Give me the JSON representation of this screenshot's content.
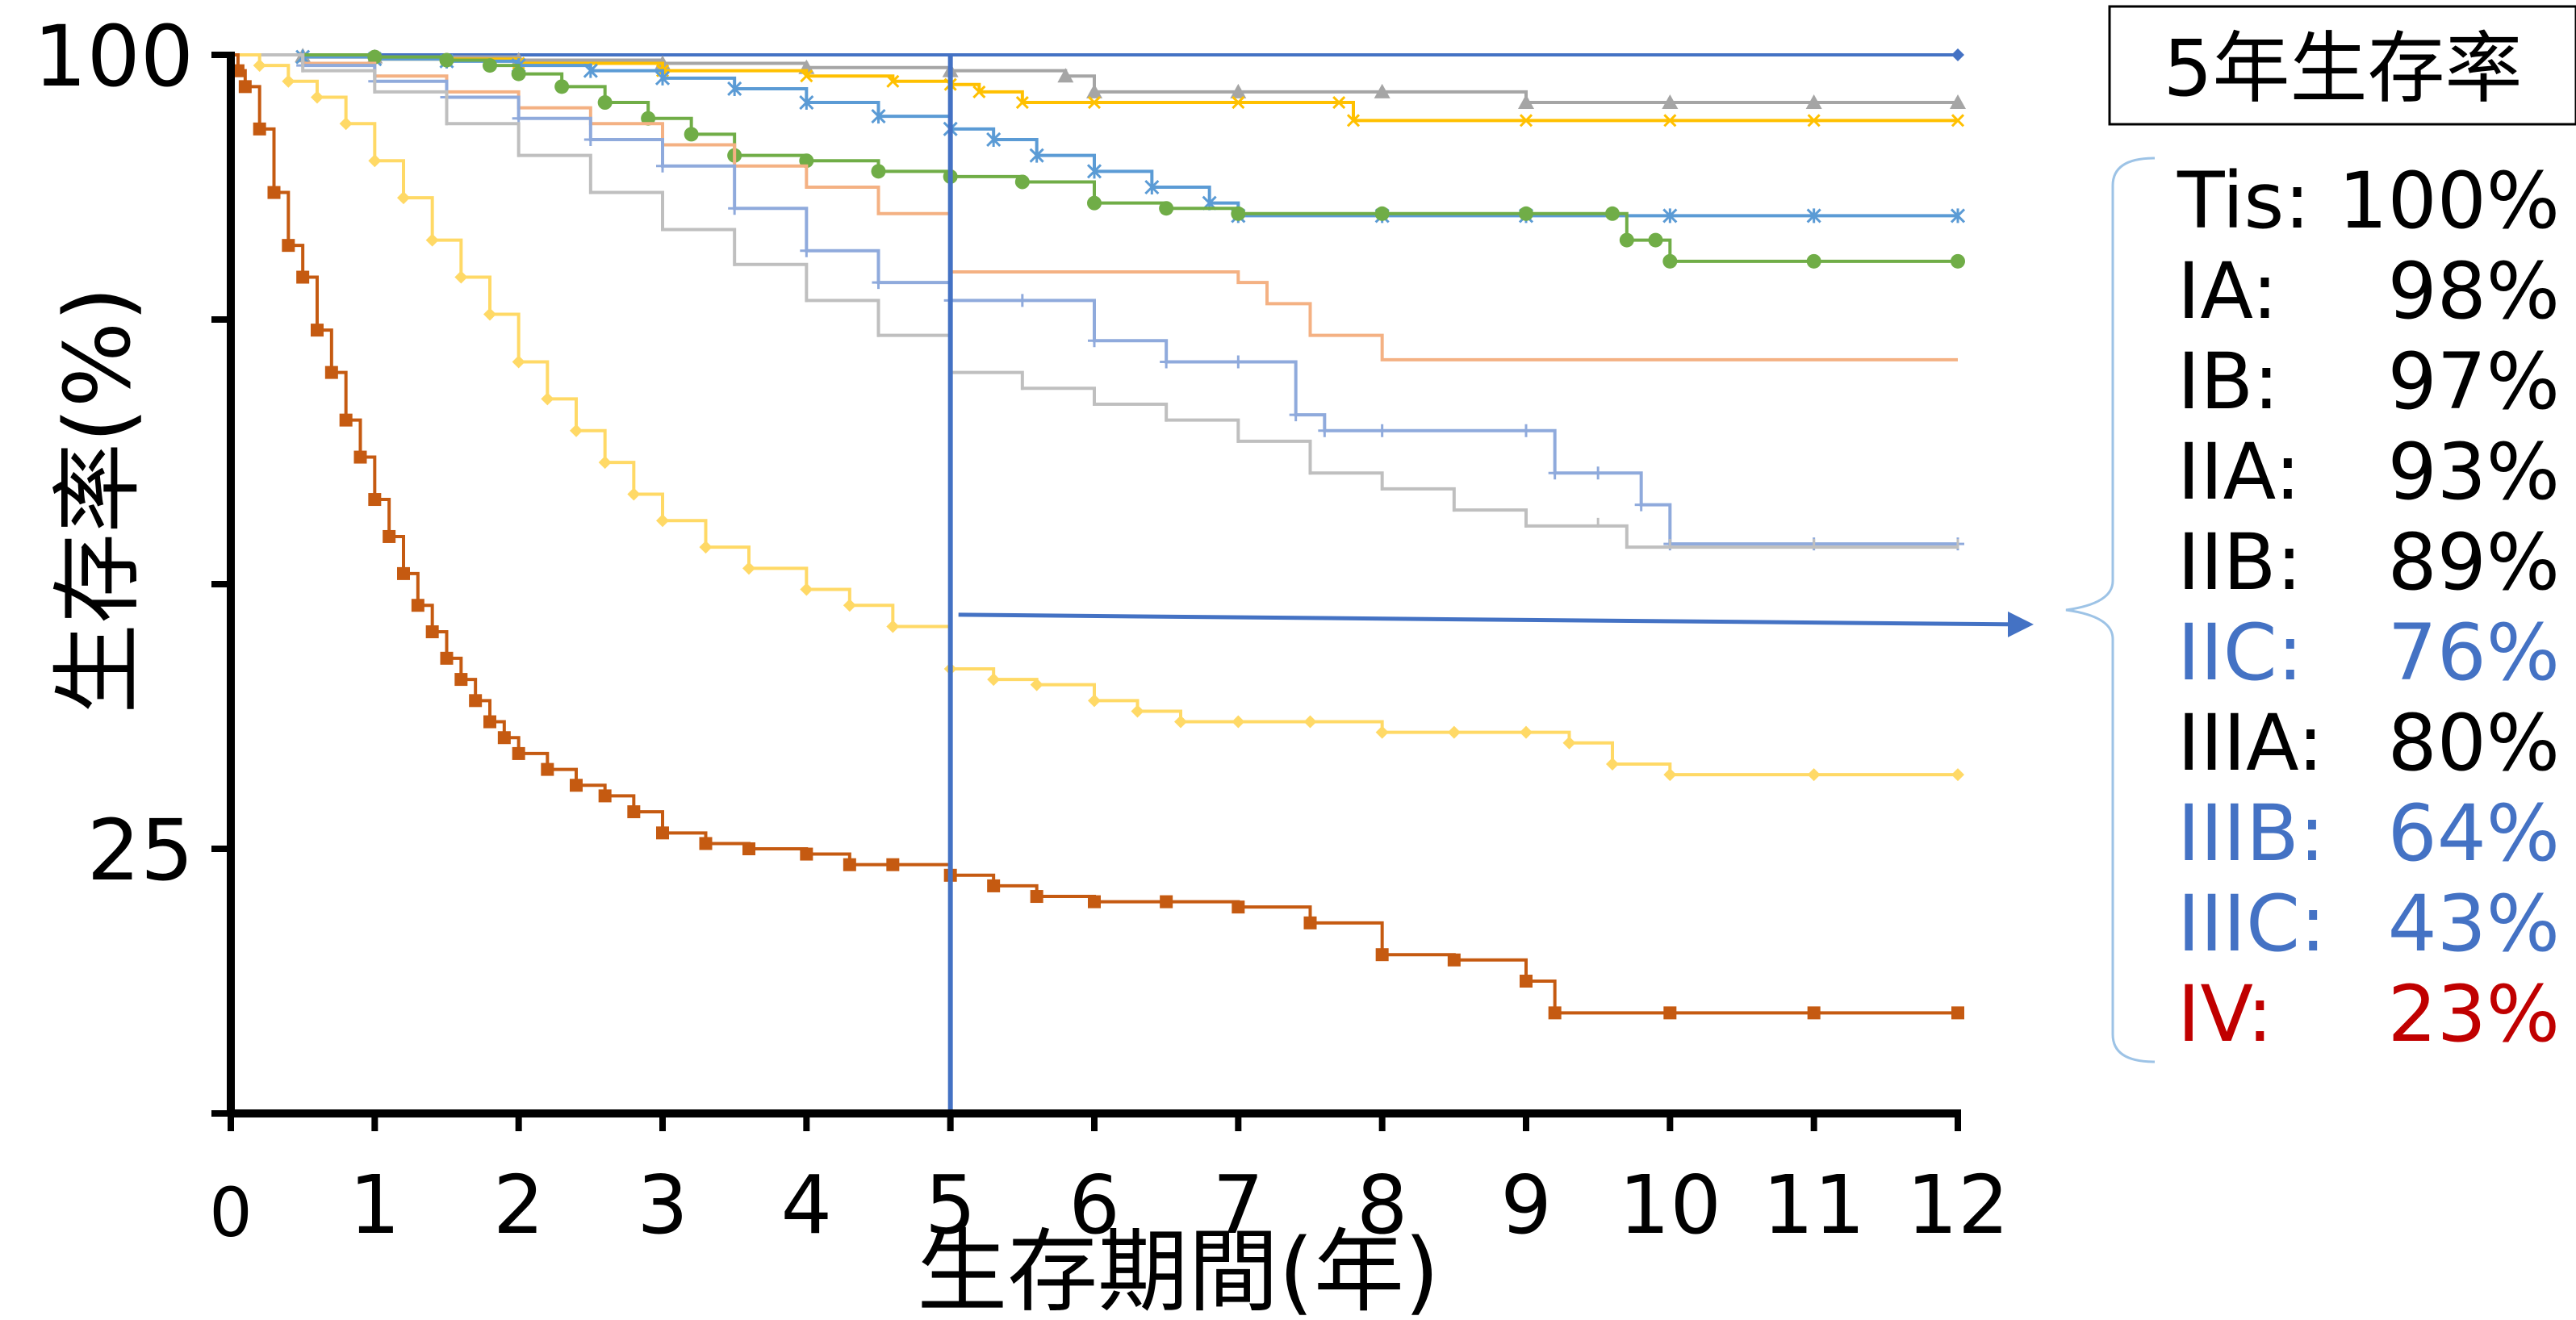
{
  "chart_data": {
    "type": "line",
    "title": "",
    "xlabel": "生存期間(年)",
    "ylabel": "生存率(%)",
    "xlim": [
      0,
      12
    ],
    "ylim": [
      0,
      100
    ],
    "x_ticks": [
      "0",
      "1",
      "2",
      "3",
      "4",
      "5",
      "6",
      "7",
      "8",
      "9",
      "10",
      "11",
      "12"
    ],
    "y_ticks": [
      {
        "value": 100,
        "label": "100"
      },
      {
        "value": 75,
        "label": ""
      },
      {
        "value": 50,
        "label": ""
      },
      {
        "value": 25,
        "label": "25"
      },
      {
        "value": 0,
        "label": ""
      }
    ],
    "grid": false,
    "legend_box_title": "5年生存率",
    "reference_line_x": 5,
    "reference_arrow_y": 46.5,
    "legend_entries": [
      {
        "label": "Tis:",
        "value": "100%",
        "color": "#000000"
      },
      {
        "label": "IA:",
        "value": "98%",
        "color": "#000000"
      },
      {
        "label": "IB:",
        "value": "97%",
        "color": "#000000"
      },
      {
        "label": "IIA:",
        "value": "93%",
        "color": "#000000"
      },
      {
        "label": "IIB:",
        "value": "89%",
        "color": "#000000"
      },
      {
        "label": "IIC:",
        "value": "76%",
        "color": "#4472c4"
      },
      {
        "label": "IIIA:",
        "value": "80%",
        "color": "#000000"
      },
      {
        "label": "IIIB:",
        "value": "64%",
        "color": "#4472c4"
      },
      {
        "label": "IIIC:",
        "value": "43%",
        "color": "#4472c4"
      },
      {
        "label": "IV:",
        "value": "23%",
        "color": "#c00000"
      }
    ],
    "series": [
      {
        "color": "#4472c4",
        "marker": "diamond",
        "x": [
          0,
          12
        ],
        "y": [
          100,
          100
        ]
      },
      {
        "color": "#a5a5a5",
        "marker": "triangle",
        "x": [
          0,
          0.5,
          1,
          2,
          3,
          4,
          5,
          5.8,
          6,
          7,
          8,
          9,
          10,
          11,
          12
        ],
        "y": [
          100,
          99.9,
          99.8,
          99.5,
          99.2,
          98.8,
          98.5,
          98,
          96.5,
          96.5,
          96.5,
          95.5,
          95.5,
          95.5,
          95.5
        ]
      },
      {
        "color": "#ffc000",
        "marker": "x",
        "x": [
          0,
          0.5,
          1,
          2,
          3,
          4,
          4.6,
          5,
          5.2,
          5.5,
          6,
          7,
          7.7,
          7.8,
          9,
          10,
          11,
          12
        ],
        "y": [
          100,
          99.8,
          99.6,
          99.2,
          98.5,
          98,
          97.5,
          97.2,
          96.5,
          95.5,
          95.5,
          95.5,
          95.5,
          93.8,
          93.8,
          93.8,
          93.8,
          93.8
        ]
      },
      {
        "color": "#5b9bd5",
        "marker": "asterisk",
        "x": [
          0,
          0.5,
          1,
          1.5,
          2,
          2.5,
          3,
          3.5,
          4,
          4.5,
          5,
          5.3,
          5.6,
          6,
          6.4,
          6.8,
          7,
          8,
          9,
          10,
          11,
          12
        ],
        "y": [
          100,
          99.8,
          99.6,
          99.4,
          99,
          98.5,
          97.8,
          96.8,
          95.5,
          94.2,
          93,
          92,
          90.5,
          89,
          87.5,
          86,
          84.8,
          84.8,
          84.8,
          84.8,
          84.8,
          84.8
        ]
      },
      {
        "color": "#70ad47",
        "marker": "circle",
        "x": [
          0,
          1,
          1.5,
          1.8,
          2,
          2.3,
          2.6,
          2.9,
          3.2,
          3.5,
          4,
          4.5,
          5,
          5.5,
          6,
          6.5,
          7,
          8,
          9,
          9.6,
          9.7,
          9.9,
          10,
          11,
          12
        ],
        "y": [
          100,
          99.8,
          99.5,
          99,
          98.2,
          97,
          95.5,
          94,
          92.5,
          90.5,
          90,
          89,
          88.5,
          88,
          86,
          85.5,
          85,
          85,
          85,
          85,
          82.5,
          82.5,
          80.5,
          80.5,
          80.5
        ]
      },
      {
        "color": "#f4b183",
        "marker": "none",
        "x": [
          0,
          0.5,
          1,
          1.5,
          2,
          2.5,
          3,
          3.5,
          4,
          4.5,
          5,
          5.5,
          6,
          7,
          7.2,
          7.5,
          8,
          9,
          10,
          11,
          12
        ],
        "y": [
          100,
          99.2,
          98,
          96.5,
          95,
          93.5,
          91.5,
          89.5,
          87.5,
          85,
          79.5,
          79.5,
          79.5,
          78.5,
          76.5,
          73.5,
          71.2,
          71.2,
          71.2,
          71.2,
          71.2
        ]
      },
      {
        "color": "#8faadc",
        "marker": "plus",
        "x": [
          0,
          0.5,
          1,
          1.5,
          2,
          2.5,
          3,
          3.5,
          4,
          4.5,
          5,
          5.5,
          6,
          6.5,
          7,
          7.4,
          7.6,
          8,
          9,
          9.2,
          9.5,
          9.8,
          10,
          11,
          12
        ],
        "y": [
          100,
          99,
          97.5,
          96,
          94,
          92,
          89.5,
          85.5,
          81.5,
          78.5,
          76.8,
          76.8,
          73,
          71,
          71,
          66,
          64.5,
          64.5,
          64.5,
          60.5,
          60.5,
          57.5,
          53.8,
          53.8,
          53.8
        ]
      },
      {
        "color": "#bfbfbf",
        "marker": "tick",
        "x": [
          0,
          0.5,
          1,
          1.5,
          2,
          2.5,
          3,
          3.5,
          4,
          4.5,
          5,
          5.5,
          6,
          6.5,
          7,
          7.5,
          8,
          8.5,
          9,
          9.5,
          9.7,
          10,
          11,
          12
        ],
        "y": [
          100,
          98.5,
          96.5,
          93.5,
          90.5,
          87,
          83.5,
          80.2,
          76.8,
          73.5,
          70,
          68.5,
          67,
          65.5,
          63.5,
          60.5,
          59,
          57,
          55.5,
          55.5,
          53.5,
          53.5,
          53.5,
          53.5
        ]
      },
      {
        "color": "#ffd966",
        "marker": "diamond",
        "x": [
          0,
          0.2,
          0.4,
          0.6,
          0.8,
          1,
          1.2,
          1.4,
          1.6,
          1.8,
          2,
          2.2,
          2.4,
          2.6,
          2.8,
          3,
          3.3,
          3.6,
          4,
          4.3,
          4.6,
          5,
          5.3,
          5.6,
          6,
          6.3,
          6.6,
          7,
          7.5,
          8,
          8.5,
          9,
          9.3,
          9.6,
          10,
          11,
          12
        ],
        "y": [
          100,
          99,
          97.5,
          96,
          93.5,
          90,
          86.5,
          82.5,
          79,
          75.5,
          71,
          67.5,
          64.5,
          61.5,
          58.5,
          56,
          53.5,
          51.5,
          49.5,
          48,
          46,
          42,
          41,
          40.5,
          39,
          38,
          37,
          37,
          37,
          36,
          36,
          36,
          35,
          33,
          32,
          32,
          32
        ]
      },
      {
        "color": "#c55a11",
        "marker": "square",
        "x": [
          0,
          0.05,
          0.1,
          0.2,
          0.3,
          0.4,
          0.5,
          0.6,
          0.7,
          0.8,
          0.9,
          1,
          1.1,
          1.2,
          1.3,
          1.4,
          1.5,
          1.6,
          1.7,
          1.8,
          1.9,
          2,
          2.2,
          2.4,
          2.6,
          2.8,
          3,
          3.3,
          3.6,
          4,
          4.3,
          4.6,
          5,
          5.3,
          5.6,
          6,
          6.5,
          7,
          7.5,
          8,
          8.5,
          9,
          9.2,
          10,
          11,
          12
        ],
        "y": [
          100,
          98.5,
          97,
          93,
          87,
          82,
          79,
          74,
          70,
          65.5,
          62,
          58,
          54.5,
          51,
          48,
          45.5,
          43,
          41,
          39,
          37,
          35.5,
          34,
          32.5,
          31,
          30,
          28.5,
          26.5,
          25.5,
          25,
          24.5,
          23.5,
          23.5,
          22.5,
          21.5,
          20.5,
          20,
          20,
          19.5,
          18,
          15,
          14.5,
          12.5,
          9.5,
          9.5,
          9.5,
          9.5
        ]
      }
    ]
  }
}
